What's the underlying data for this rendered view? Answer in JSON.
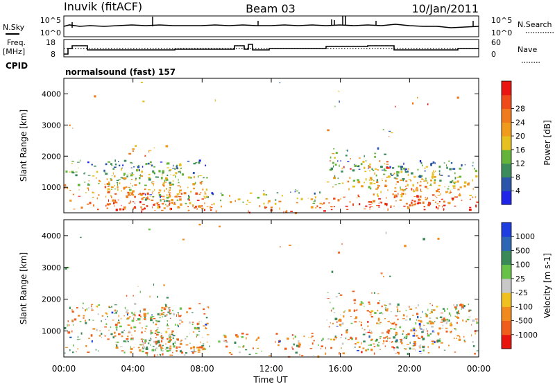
{
  "header": {
    "station": "Inuvik (fitACF)",
    "beam": "Beam 03",
    "date": "10/Jan/2011"
  },
  "noise_panel": {
    "left_label": "N.Sky",
    "right_label": "N.Search",
    "left_ticks": [
      "10^5",
      "10^0"
    ],
    "right_ticks": [
      "10^5",
      "10^0"
    ]
  },
  "freq_panel": {
    "left_label_top": "Freq.",
    "left_label_bottom": "[MHz]",
    "right_label": "Nave",
    "left_ticks": [
      "18",
      "8"
    ],
    "right_ticks": [
      "60",
      "0"
    ]
  },
  "cpid": {
    "label": "CPID",
    "value": "normalsound (fast) 157"
  },
  "chart_data": [
    {
      "type": "heatmap",
      "name": "power",
      "ylabel": "Slant Range [km]",
      "ylim": [
        180,
        4500
      ],
      "yticks": [
        "1000",
        "2000",
        "3000",
        "4000"
      ],
      "colorbar": {
        "label": "Power [dB]",
        "ticks": [
          "4",
          "8",
          "12",
          "16",
          "20",
          "24",
          "28"
        ],
        "colors": [
          "#1f24e6",
          "#2a55a8",
          "#3c8b5c",
          "#64b43c",
          "#e6c020",
          "#f09a1e",
          "#f07a1e",
          "#ee4a1a",
          "#e81510"
        ]
      }
    },
    {
      "type": "heatmap",
      "name": "velocity",
      "ylabel": "Slant Range [km]",
      "ylim": [
        180,
        4500
      ],
      "yticks": [
        "1000",
        "2000",
        "3000",
        "4000"
      ],
      "colorbar": {
        "label": "Velocity [m s-1]",
        "ticks": [
          "1000",
          "500",
          "100",
          "25",
          "-25",
          "-100",
          "-500",
          "-1000"
        ],
        "colors": [
          "#1f3ee0",
          "#2d67b4",
          "#3a8a58",
          "#68c24a",
          "#c8c8c8",
          "#f0c020",
          "#f08a1e",
          "#ef5e1c",
          "#e8150f"
        ]
      }
    }
  ],
  "xaxis": {
    "label": "Time UT",
    "ticks": [
      "00:00",
      "04:00",
      "08:00",
      "12:00",
      "16:00",
      "20:00",
      "00:00"
    ]
  }
}
